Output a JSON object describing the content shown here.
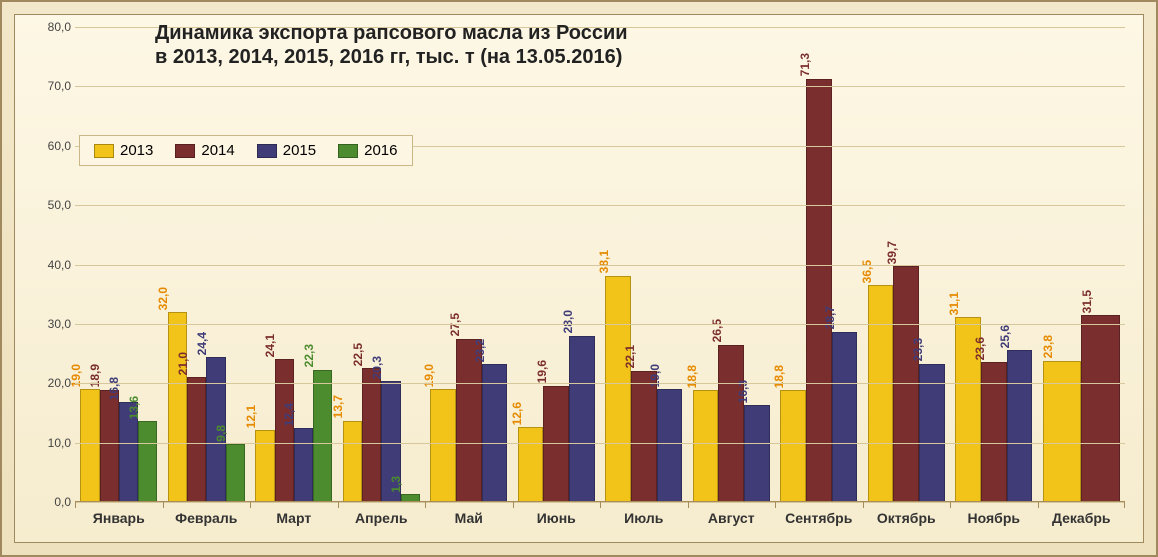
{
  "chart": {
    "type": "bar-grouped",
    "title_line1": "Динамика экспорта рапсового масла из России",
    "title_line2": "в 2013, 2014, 2015, 2016  гг, тыс. т (на  13.05.2016)",
    "title_fontsize": 20,
    "title_color": "#222222",
    "background_color": "#fdf6e3",
    "frame_border": "#a0895f",
    "outer_background": "#eee1bd",
    "grid_color": "#d6c79d",
    "axis_color": "#a78d5b",
    "y": {
      "min": 0,
      "max": 80,
      "ticks": [
        0,
        10,
        20,
        30,
        40,
        50,
        60,
        70,
        80
      ],
      "tick_labels": [
        "0,0",
        "10,0",
        "20,0",
        "30,0",
        "40,0",
        "50,0",
        "60,0",
        "70,0",
        "80,0"
      ],
      "label_fontsize": 12,
      "label_color": "#444444"
    },
    "months": [
      "Январь",
      "Февраль",
      "Март",
      "Апрель",
      "Май",
      "Июнь",
      "Июль",
      "Август",
      "Сентябрь",
      "Октябрь",
      "Ноябрь",
      "Декабрь"
    ],
    "series": [
      {
        "name": "2013",
        "color": "#f2c318",
        "label_color": "#e68a00",
        "values": [
          19.0,
          32.0,
          12.1,
          13.7,
          19.0,
          12.6,
          38.1,
          18.8,
          18.8,
          36.5,
          31.1,
          23.8
        ],
        "value_labels": [
          "19,0",
          "32,0",
          "12,1",
          "13,7",
          "19,0",
          "12,6",
          "38,1",
          "18,8",
          "18,8",
          "36,5",
          "31,1",
          "23,8"
        ]
      },
      {
        "name": "2014",
        "color": "#7b2e2e",
        "label_color": "#7b2e2e",
        "values": [
          18.9,
          21.0,
          24.1,
          22.5,
          27.5,
          19.6,
          22.1,
          26.5,
          71.3,
          39.7,
          23.6,
          31.5
        ],
        "value_labels": [
          "18,9",
          "21,0",
          "24,1",
          "22,5",
          "27,5",
          "19,6",
          "22,1",
          "26,5",
          "71,3",
          "39,7",
          "23,6",
          "31,5"
        ]
      },
      {
        "name": "2015",
        "color": "#3f3c78",
        "label_color": "#3f3c78",
        "values": [
          16.8,
          24.4,
          12.4,
          20.3,
          23.2,
          28.0,
          19.0,
          16.3,
          28.7,
          23.3,
          25.6,
          null
        ],
        "value_labels": [
          "16,8",
          "24,4",
          "12,4",
          "20,3",
          "23,2",
          "28,0",
          "19,0",
          "16,3",
          "28,7",
          "23,3",
          "25,6",
          null
        ]
      },
      {
        "name": "2016",
        "color": "#4d8b2f",
        "label_color": "#4d8b2f",
        "values": [
          13.6,
          9.8,
          22.3,
          1.3,
          null,
          null,
          null,
          null,
          null,
          null,
          null,
          null
        ],
        "value_labels": [
          "13,6",
          "9,8",
          "22,3",
          "1,3",
          null,
          null,
          null,
          null,
          null,
          null,
          null,
          null
        ]
      }
    ],
    "x_tick_fontsize": 14,
    "x_tick_weight": "bold",
    "bar_label_fontsize": 12,
    "bar_label_rotation": -90,
    "legend": {
      "position": "top-left-inside",
      "items": [
        "2013",
        "2014",
        "2015",
        "2016"
      ],
      "fontsize": 15,
      "border": "#c9b885",
      "background": "#fdf6e3"
    }
  }
}
